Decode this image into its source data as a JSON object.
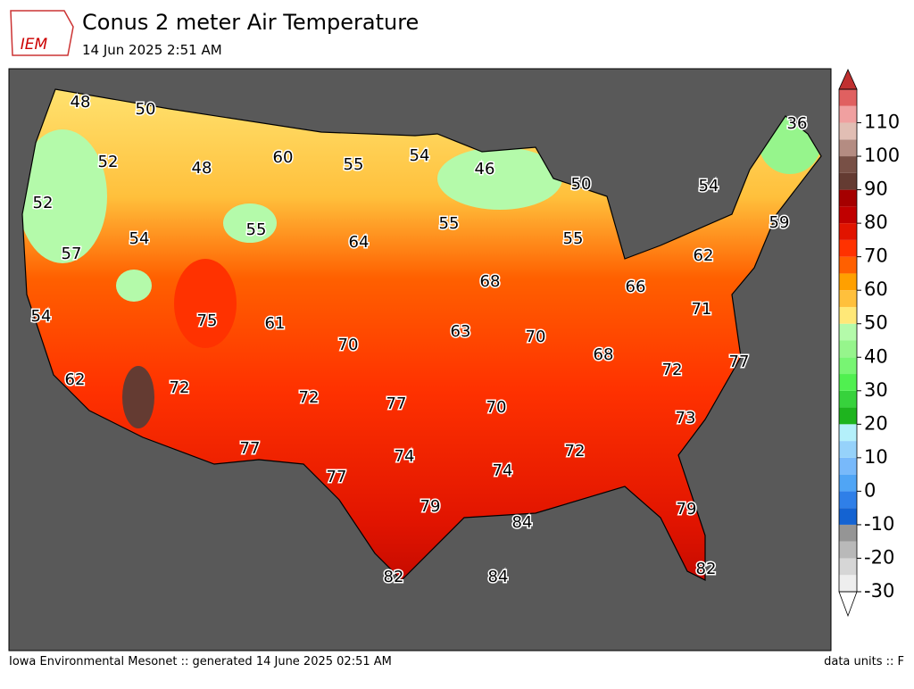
{
  "header": {
    "logo": "IEM",
    "title": "Conus 2 meter Air Temperature",
    "subtitle": "14 Jun 2025 2:51 AM"
  },
  "labels": [
    48,
    50,
    52,
    48,
    60,
    55,
    54,
    46,
    50,
    36,
    54,
    52,
    54,
    55,
    64,
    55,
    55,
    59,
    57,
    62,
    68,
    66,
    54,
    75,
    61,
    63,
    70,
    71,
    70,
    68,
    72,
    77,
    62,
    72,
    72,
    77,
    70,
    73,
    77,
    74,
    72,
    74,
    77,
    79,
    84,
    79,
    82,
    84,
    82
  ],
  "colorbar": {
    "lim": [
      -30,
      120
    ],
    "ticks": [
      -30,
      -20,
      -10,
      0,
      10,
      20,
      30,
      40,
      50,
      60,
      70,
      80,
      90,
      100,
      110
    ],
    "colors": [
      "#eeeeee",
      "#d6d6d6",
      "#b9b9b9",
      "#959595",
      "#1463d2",
      "#2f7fe8",
      "#50a5f5",
      "#78b9fa",
      "#96d2fa",
      "#b4f0fa",
      "#1eb41e",
      "#37d23c",
      "#50f050",
      "#78f573",
      "#96f58c",
      "#b4faaa",
      "#ffe878",
      "#ffc03c",
      "#ffa000",
      "#ff6000",
      "#ff3200",
      "#e11400",
      "#c00000",
      "#a50000",
      "#643b32",
      "#785046",
      "#b48c82",
      "#e1beb4",
      "#f0a0a0",
      "#e06060"
    ],
    "over_color": "#c03030",
    "under_color": "#ffffff"
  },
  "footer": {
    "left": "Iowa Environmental Mesonet :: generated 14 June 2025 02:51 AM",
    "right": "data units :: F"
  }
}
